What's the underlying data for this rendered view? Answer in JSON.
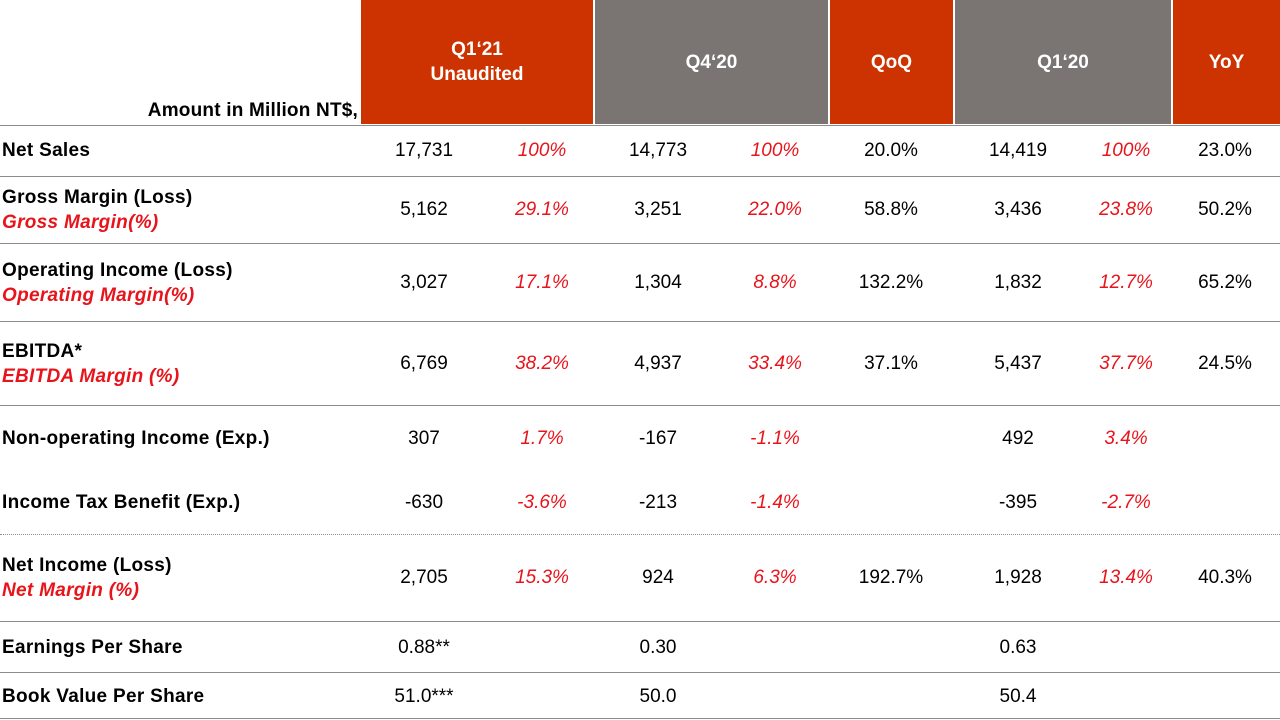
{
  "header": {
    "amount_label": "Amount in Million  NT$,",
    "q1_21_line1": "Q1‘21",
    "q1_21_line2": "Unaudited",
    "q4_20": "Q4‘20",
    "qoq": "QoQ",
    "q1_20": "Q1‘20",
    "yoy": "YoY"
  },
  "colors": {
    "accent_red": "#cc3300",
    "header_gray": "#7a7472",
    "percent_red": "#e8141b"
  },
  "rows": {
    "net_sales": {
      "label": "Net Sales",
      "q1_21": "17,731",
      "q1_21_pct": "100%",
      "q4_20": "14,773",
      "q4_20_pct": "100%",
      "qoq": "20.0%",
      "q1_20": "14,419",
      "q1_20_pct": "100%",
      "yoy": "23.0%"
    },
    "gross_margin": {
      "label": "Gross Margin (Loss)",
      "sub": "Gross Margin(%)",
      "q1_21": "5,162",
      "q1_21_pct": "29.1%",
      "q4_20": "3,251",
      "q4_20_pct": "22.0%",
      "qoq": "58.8%",
      "q1_20": "3,436",
      "q1_20_pct": "23.8%",
      "yoy": "50.2%"
    },
    "operating_income": {
      "label": "Operating Income (Loss)",
      "sub": "Operating Margin(%)",
      "q1_21": "3,027",
      "q1_21_pct": "17.1%",
      "q4_20": "1,304",
      "q4_20_pct": "8.8%",
      "qoq": "132.2%",
      "q1_20": "1,832",
      "q1_20_pct": "12.7%",
      "yoy": "65.2%"
    },
    "ebitda": {
      "label": "EBITDA*",
      "sub": "EBITDA Margin (%)",
      "q1_21": "6,769",
      "q1_21_pct": "38.2%",
      "q4_20": "4,937",
      "q4_20_pct": "33.4%",
      "qoq": "37.1%",
      "q1_20": "5,437",
      "q1_20_pct": "37.7%",
      "yoy": "24.5%"
    },
    "non_operating": {
      "label": "Non-operating Income (Exp.)",
      "q1_21": "307",
      "q1_21_pct": "1.7%",
      "q4_20": "-167",
      "q4_20_pct": "-1.1%",
      "q1_20": "492",
      "q1_20_pct": "3.4%"
    },
    "income_tax": {
      "label": "Income Tax Benefit (Exp.)",
      "q1_21": "-630",
      "q1_21_pct": "-3.6%",
      "q4_20": "-213",
      "q4_20_pct": "-1.4%",
      "q1_20": "-395",
      "q1_20_pct": "-2.7%"
    },
    "net_income": {
      "label": "Net Income (Loss)",
      "sub": "Net Margin (%)",
      "q1_21": "2,705",
      "q1_21_pct": "15.3%",
      "q4_20": "924",
      "q4_20_pct": "6.3%",
      "qoq": "192.7%",
      "q1_20": "1,928",
      "q1_20_pct": "13.4%",
      "yoy": "40.3%"
    },
    "eps": {
      "label": "Earnings Per Share",
      "q1_21": "0.88**",
      "q4_20": "0.30",
      "q1_20": "0.63"
    },
    "bvps": {
      "label": "Book Value Per Share",
      "q1_21": "51.0***",
      "q4_20": "50.0",
      "q1_20": "50.4"
    }
  }
}
